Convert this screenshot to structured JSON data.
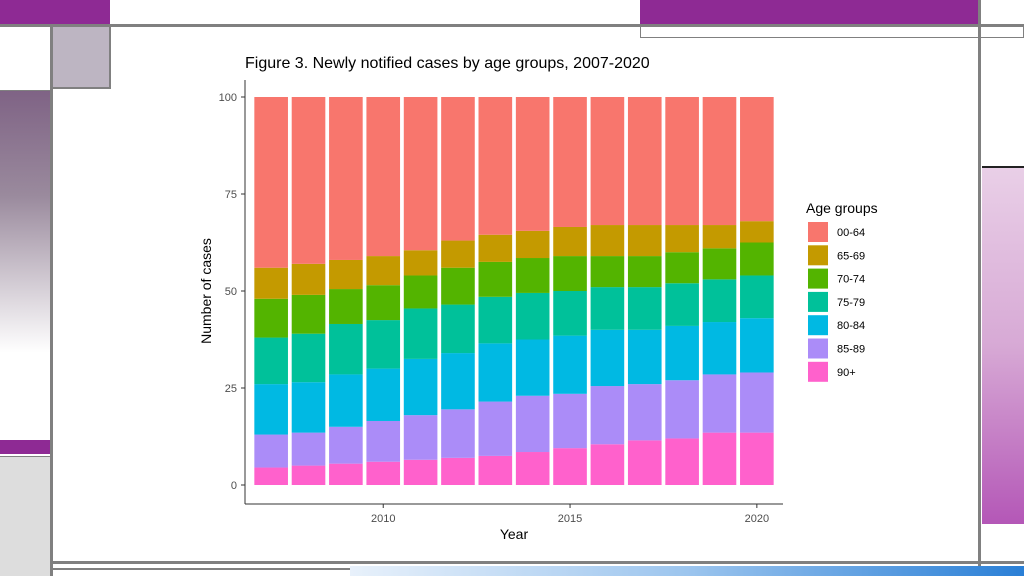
{
  "slide": {
    "accent_purple": "#8e2a94",
    "light_purple": "#e6c9e8",
    "frame_gray": "#808080"
  },
  "chart_data": {
    "type": "bar",
    "stacked": true,
    "title": "Figure 3. Newly notified cases by age groups, 2007-2020",
    "xlabel": "Year",
    "ylabel": "Number of cases",
    "ylim": [
      0,
      100
    ],
    "yticks": [
      0,
      25,
      50,
      75,
      100
    ],
    "xticks": [
      2010,
      2015,
      2020
    ],
    "grid": false,
    "legend": {
      "title": "Age groups",
      "placement": "right"
    },
    "x": [
      2007,
      2008,
      2009,
      2010,
      2011,
      2012,
      2013,
      2014,
      2015,
      2016,
      2017,
      2018,
      2019,
      2020
    ],
    "series": [
      {
        "name": "90+",
        "color": "#ff61cc",
        "values": [
          4.5,
          5,
          5.5,
          6,
          6.5,
          7,
          7.5,
          8.5,
          9.5,
          10.5,
          11.5,
          12,
          13.5,
          13.5
        ]
      },
      {
        "name": "85-89",
        "color": "#ab8cf8",
        "values": [
          8.5,
          8.5,
          9.5,
          10.5,
          11.5,
          12.5,
          14,
          14.5,
          14,
          15,
          14.5,
          15,
          15,
          15.5
        ]
      },
      {
        "name": "80-84",
        "color": "#00b9e3",
        "values": [
          13,
          13,
          13.5,
          13.5,
          14.5,
          14.5,
          15,
          14.5,
          15,
          14.5,
          14,
          14,
          13.5,
          14
        ]
      },
      {
        "name": "75-79",
        "color": "#00c19a",
        "values": [
          12,
          12.5,
          13,
          12.5,
          13,
          12.5,
          12,
          12,
          11.5,
          11,
          11,
          11,
          11,
          11
        ]
      },
      {
        "name": "70-74",
        "color": "#53b400",
        "values": [
          10,
          10,
          9,
          9,
          8.5,
          9.5,
          9,
          9,
          9,
          8,
          8,
          8,
          8,
          8.5
        ]
      },
      {
        "name": "65-69",
        "color": "#c49a00",
        "values": [
          8,
          8,
          7.5,
          7.5,
          6.5,
          7,
          7,
          7,
          7.5,
          8,
          8,
          7,
          6,
          5.5
        ]
      },
      {
        "name": "00-64",
        "color": "#f8766d",
        "values": [
          44,
          43,
          42,
          41,
          39.5,
          37,
          35.5,
          34.5,
          33.5,
          33,
          33,
          33,
          33,
          32
        ]
      }
    ],
    "legend_order": [
      "00-64",
      "65-69",
      "70-74",
      "75-79",
      "80-84",
      "85-89",
      "90+"
    ]
  }
}
